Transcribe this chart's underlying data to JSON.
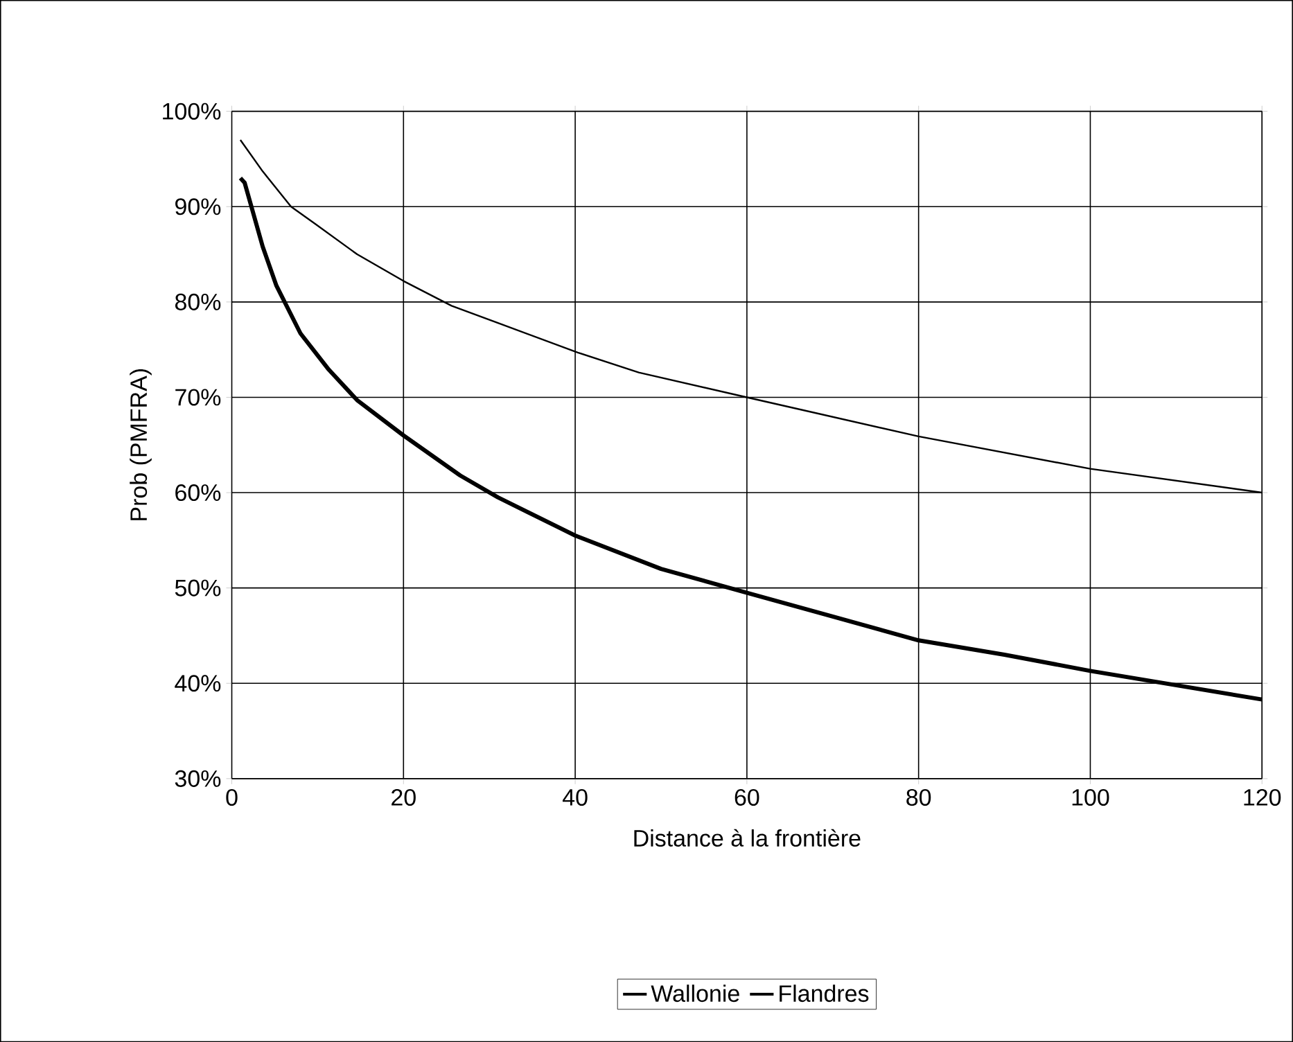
{
  "chart_data": {
    "type": "line",
    "xlabel": "Distance à la frontière",
    "ylabel": "Prob (PMFRA)",
    "xlim": [
      0,
      120
    ],
    "xticks": [
      0,
      20,
      40,
      60,
      80,
      100,
      120
    ],
    "ylim": [
      0.3,
      1.0
    ],
    "yticks": [
      {
        "value": 0.3,
        "label": "30%"
      },
      {
        "value": 0.4,
        "label": "40%"
      },
      {
        "value": 0.5,
        "label": "50%"
      },
      {
        "value": 0.6,
        "label": "60%"
      },
      {
        "value": 0.7,
        "label": "70%"
      },
      {
        "value": 0.8,
        "label": "80%"
      },
      {
        "value": 0.9,
        "label": "90%"
      },
      {
        "value": 1.0,
        "label": "100%"
      }
    ],
    "grid": true,
    "legend": "bottom",
    "marker": "none",
    "line_style": "solid",
    "series": [
      {
        "name": "Wallonie",
        "color": "#000000",
        "x": [
          1,
          3.6,
          6.9,
          9.7,
          14.6,
          20,
          25.6,
          31,
          40.3,
          47.4,
          60,
          80,
          100,
          120
        ],
        "values": [
          0.97,
          0.937,
          0.9,
          0.882,
          0.85,
          0.822,
          0.796,
          0.778,
          0.747,
          0.726,
          0.7,
          0.659,
          0.625,
          0.6
        ]
      },
      {
        "name": "Flandres",
        "color": "#000000",
        "x": [
          1,
          1.5,
          3.6,
          5.2,
          8,
          11.3,
          14.6,
          20,
          26.6,
          31,
          40,
          50,
          60,
          70,
          80,
          90,
          100,
          110,
          120
        ],
        "values": [
          0.93,
          0.925,
          0.858,
          0.817,
          0.767,
          0.729,
          0.697,
          0.66,
          0.618,
          0.595,
          0.555,
          0.52,
          0.495,
          0.47,
          0.445,
          0.43,
          0.413,
          0.398,
          0.383
        ]
      }
    ]
  }
}
